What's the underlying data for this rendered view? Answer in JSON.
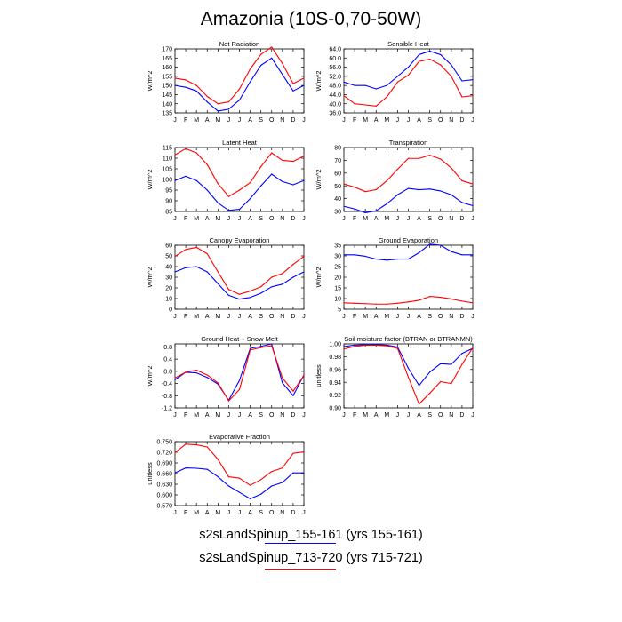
{
  "title": "Amazonia (10S-0,70-50W)",
  "legend": [
    {
      "label": "s2sLandSpinup_155-161 (yrs 155-161)",
      "color": "#0000ff"
    },
    {
      "label": "s2sLandSpinup_713-720 (yrs 715-721)",
      "color": "#ff0000"
    }
  ],
  "chart_data": [
    {
      "type": "line",
      "title": "Net Radiation",
      "ylabel": "W/m^2",
      "categories": [
        "J",
        "F",
        "M",
        "A",
        "M",
        "J",
        "J",
        "A",
        "S",
        "O",
        "N",
        "D",
        "J"
      ],
      "ylim": [
        135,
        170
      ],
      "yticks": [
        135,
        140,
        145,
        150,
        155,
        160,
        165,
        170
      ],
      "ytick_labels": [
        "135",
        "140",
        "145",
        "150",
        "155",
        "160",
        "165",
        "170"
      ],
      "series": [
        {
          "name": "s2sLandSpinup_155-161",
          "color": "#0000ff",
          "values": [
            150,
            149,
            147,
            141,
            136,
            137,
            142,
            152,
            161,
            165,
            156,
            147,
            150
          ]
        },
        {
          "name": "s2sLandSpinup_713-720",
          "color": "#ff0000",
          "values": [
            154,
            153,
            150,
            144,
            140,
            141,
            148,
            159,
            167,
            171,
            162,
            151,
            154
          ]
        }
      ]
    },
    {
      "type": "line",
      "title": "Sensible Heat",
      "ylabel": "W/m^2",
      "categories": [
        "J",
        "F",
        "M",
        "A",
        "M",
        "J",
        "J",
        "A",
        "S",
        "O",
        "N",
        "D",
        "J"
      ],
      "ylim": [
        36,
        64
      ],
      "yticks": [
        36,
        40,
        44,
        48,
        52,
        56,
        60,
        64
      ],
      "ytick_labels": [
        "36.0",
        "40.0",
        "44.0",
        "48.0",
        "52.0",
        "56.0",
        "60.0",
        "64.0"
      ],
      "series": [
        {
          "name": "s2sLandSpinup_155-161",
          "color": "#0000ff",
          "values": [
            49.5,
            48,
            48,
            46.5,
            48,
            52,
            56,
            61.5,
            63,
            61.5,
            57,
            50,
            50.5
          ]
        },
        {
          "name": "s2sLandSpinup_713-720",
          "color": "#ff0000",
          "values": [
            43.5,
            40,
            39.5,
            39,
            43,
            49.5,
            52.5,
            58.5,
            59.5,
            57,
            52,
            43,
            43.5
          ]
        }
      ]
    },
    {
      "type": "line",
      "title": "Latent Heat",
      "ylabel": "W/m^2",
      "categories": [
        "J",
        "F",
        "M",
        "A",
        "M",
        "J",
        "J",
        "A",
        "S",
        "O",
        "N",
        "D",
        "J"
      ],
      "ylim": [
        85,
        115
      ],
      "yticks": [
        85,
        90,
        95,
        100,
        105,
        110,
        115
      ],
      "ytick_labels": [
        "85",
        "90",
        "95",
        "100",
        "105",
        "110",
        "115"
      ],
      "series": [
        {
          "name": "s2sLandSpinup_155-161",
          "color": "#0000ff",
          "values": [
            99.5,
            101.5,
            99.5,
            95,
            89,
            85.5,
            86,
            91,
            97,
            102.5,
            99,
            97.5,
            99.5
          ]
        },
        {
          "name": "s2sLandSpinup_713-720",
          "color": "#ff0000",
          "values": [
            111.5,
            114.5,
            112.5,
            107,
            98,
            92,
            95,
            98.5,
            106,
            112.5,
            109,
            108.5,
            111
          ]
        }
      ]
    },
    {
      "type": "line",
      "title": "Transpiration",
      "ylabel": "W/m^2",
      "categories": [
        "J",
        "F",
        "M",
        "A",
        "M",
        "J",
        "J",
        "A",
        "S",
        "O",
        "N",
        "D",
        "J"
      ],
      "ylim": [
        30,
        80
      ],
      "yticks": [
        30,
        40,
        50,
        60,
        70,
        80
      ],
      "ytick_labels": [
        "30",
        "40",
        "50",
        "60",
        "70",
        "80"
      ],
      "series": [
        {
          "name": "s2sLandSpinup_155-161",
          "color": "#0000ff",
          "values": [
            34,
            32,
            29,
            30.5,
            36,
            43,
            48,
            47,
            47.5,
            46,
            43,
            37,
            34.5
          ]
        },
        {
          "name": "s2sLandSpinup_713-720",
          "color": "#ff0000",
          "values": [
            51.5,
            49,
            45.5,
            47,
            54,
            63,
            71.5,
            71.5,
            74,
            71,
            64,
            54,
            51.5
          ]
        }
      ]
    },
    {
      "type": "line",
      "title": "Canopy Evaporation",
      "ylabel": "W/m^2",
      "categories": [
        "J",
        "F",
        "M",
        "A",
        "M",
        "J",
        "J",
        "A",
        "S",
        "O",
        "N",
        "D",
        "J"
      ],
      "ylim": [
        0,
        60
      ],
      "yticks": [
        0,
        10,
        20,
        30,
        40,
        50,
        60
      ],
      "ytick_labels": [
        "0",
        "10",
        "20",
        "30",
        "40",
        "50",
        "60"
      ],
      "series": [
        {
          "name": "s2sLandSpinup_155-161",
          "color": "#0000ff",
          "values": [
            35,
            39,
            40,
            35,
            24,
            13,
            9.5,
            11,
            15,
            21,
            23.5,
            30,
            35
          ]
        },
        {
          "name": "s2sLandSpinup_713-720",
          "color": "#ff0000",
          "values": [
            49.5,
            56,
            58,
            52,
            35,
            18.5,
            14,
            17,
            21,
            30,
            33.5,
            42,
            49.5
          ]
        }
      ]
    },
    {
      "type": "line",
      "title": "Ground Evaporation",
      "ylabel": "W/m^2",
      "categories": [
        "J",
        "F",
        "M",
        "A",
        "M",
        "J",
        "J",
        "A",
        "S",
        "O",
        "N",
        "D",
        "J"
      ],
      "ylim": [
        5,
        35
      ],
      "yticks": [
        5,
        10,
        15,
        20,
        25,
        30,
        35
      ],
      "ytick_labels": [
        "5",
        "10",
        "15",
        "20",
        "25",
        "30",
        "35"
      ],
      "series": [
        {
          "name": "s2sLandSpinup_155-161",
          "color": "#0000ff",
          "values": [
            30.5,
            30.5,
            29.8,
            28.5,
            28,
            28.5,
            28.5,
            31.5,
            35.5,
            35,
            32,
            30.5,
            30.5
          ]
        },
        {
          "name": "s2sLandSpinup_713-720",
          "color": "#ff0000",
          "values": [
            8,
            7.8,
            7.6,
            7.4,
            7.4,
            7.8,
            8.4,
            9.2,
            11,
            10.6,
            9.8,
            8.8,
            8
          ]
        }
      ]
    },
    {
      "type": "line",
      "title": "Ground Heat + Snow Melt",
      "ylabel": "W/m^2",
      "categories": [
        "J",
        "F",
        "M",
        "A",
        "M",
        "J",
        "J",
        "A",
        "S",
        "O",
        "N",
        "D",
        "J"
      ],
      "ylim": [
        -1.2,
        0.9
      ],
      "yticks": [
        -1.2,
        -0.8,
        -0.4,
        0,
        0.4,
        0.8
      ],
      "ytick_labels": [
        "-1.2",
        "-0.8",
        "-0.4",
        "0.0",
        "0.4",
        "0.8"
      ],
      "series": [
        {
          "name": "s2sLandSpinup_155-161",
          "color": "#0000ff",
          "values": [
            -0.28,
            -0.03,
            -0.05,
            -0.2,
            -0.42,
            -0.95,
            -0.3,
            0.75,
            0.82,
            0.9,
            -0.38,
            -0.8,
            -0.12
          ]
        },
        {
          "name": "s2sLandSpinup_713-720",
          "color": "#ff0000",
          "values": [
            -0.22,
            -0.03,
            0.04,
            -0.12,
            -0.38,
            -0.97,
            -0.6,
            0.7,
            0.78,
            0.84,
            -0.22,
            -0.65,
            -0.14
          ]
        }
      ]
    },
    {
      "type": "line",
      "title": "Soil moisture factor (BTRAN or BTRANMN)",
      "ylabel": "unitless",
      "categories": [
        "J",
        "F",
        "M",
        "A",
        "M",
        "J",
        "J",
        "A",
        "S",
        "O",
        "N",
        "D",
        "J"
      ],
      "ylim": [
        0.9,
        1.0
      ],
      "yticks": [
        0.9,
        0.92,
        0.94,
        0.96,
        0.98,
        1.0
      ],
      "ytick_labels": [
        "0.90",
        "0.92",
        "0.94",
        "0.96",
        "0.98",
        "1.00"
      ],
      "series": [
        {
          "name": "s2sLandSpinup_155-161",
          "color": "#0000ff",
          "values": [
            0.996,
            0.998,
            0.999,
            0.999,
            0.998,
            0.995,
            0.962,
            0.935,
            0.956,
            0.969,
            0.968,
            0.985,
            0.993
          ]
        },
        {
          "name": "s2sLandSpinup_713-720",
          "color": "#ff0000",
          "values": [
            0.992,
            0.996,
            0.998,
            0.998,
            0.997,
            0.993,
            0.948,
            0.906,
            0.923,
            0.941,
            0.938,
            0.968,
            0.994
          ]
        }
      ]
    },
    {
      "type": "line",
      "title": "Evaporative Fraction",
      "ylabel": "unitless",
      "categories": [
        "J",
        "F",
        "M",
        "A",
        "M",
        "J",
        "J",
        "A",
        "S",
        "O",
        "N",
        "D",
        "J"
      ],
      "ylim": [
        0.57,
        0.75
      ],
      "yticks": [
        0.57,
        0.6,
        0.63,
        0.66,
        0.69,
        0.72,
        0.75
      ],
      "ytick_labels": [
        "0.570",
        "0.600",
        "0.630",
        "0.660",
        "0.690",
        "0.720",
        "0.750"
      ],
      "series": [
        {
          "name": "s2sLandSpinup_155-161",
          "color": "#0000ff",
          "values": [
            0.662,
            0.676,
            0.675,
            0.672,
            0.651,
            0.625,
            0.607,
            0.589,
            0.602,
            0.625,
            0.635,
            0.662,
            0.662
          ]
        },
        {
          "name": "s2sLandSpinup_713-720",
          "color": "#ff0000",
          "values": [
            0.719,
            0.743,
            0.741,
            0.735,
            0.7,
            0.651,
            0.647,
            0.627,
            0.643,
            0.666,
            0.676,
            0.717,
            0.721
          ]
        }
      ]
    }
  ]
}
